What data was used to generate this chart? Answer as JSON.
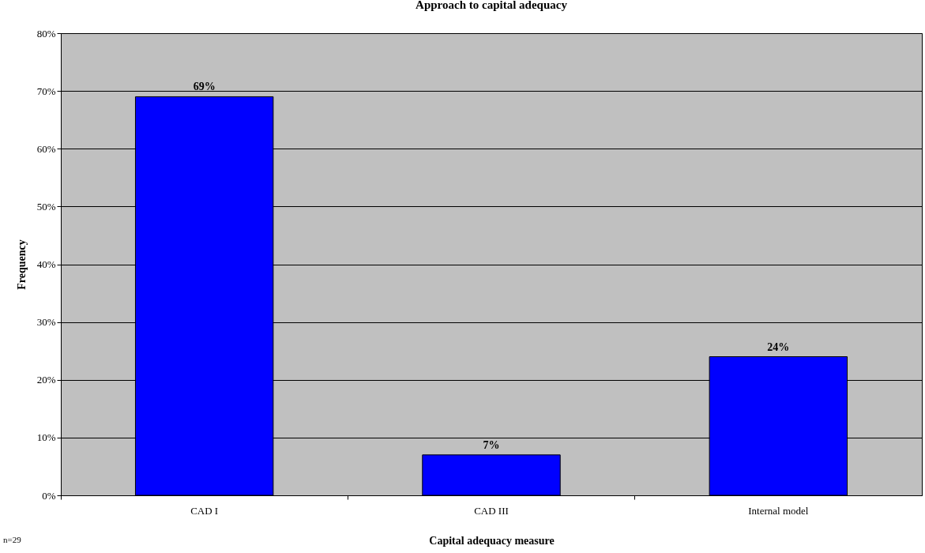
{
  "chart_data": {
    "type": "bar",
    "title": "Approach to capital adequacy",
    "xlabel": "Capital adequacy measure",
    "ylabel": "Frequency",
    "categories": [
      "CAD I",
      "CAD III",
      "Internal model"
    ],
    "values": [
      69,
      7,
      24
    ],
    "color": "#0000ff",
    "value_labels": [
      "69%",
      "7%",
      "24%"
    ],
    "ylim": [
      0,
      80
    ],
    "yticks": [
      {
        "value": 0,
        "label": "0%"
      },
      {
        "value": 10,
        "label": "10%"
      },
      {
        "value": 20,
        "label": "20%"
      },
      {
        "value": 30,
        "label": "30%"
      },
      {
        "value": 40,
        "label": "40%"
      },
      {
        "value": 50,
        "label": "50%"
      },
      {
        "value": 60,
        "label": "60%"
      },
      {
        "value": 70,
        "label": "70%"
      },
      {
        "value": 80,
        "label": "80%"
      }
    ],
    "grid": "y",
    "annotations": [
      "n=29"
    ]
  }
}
